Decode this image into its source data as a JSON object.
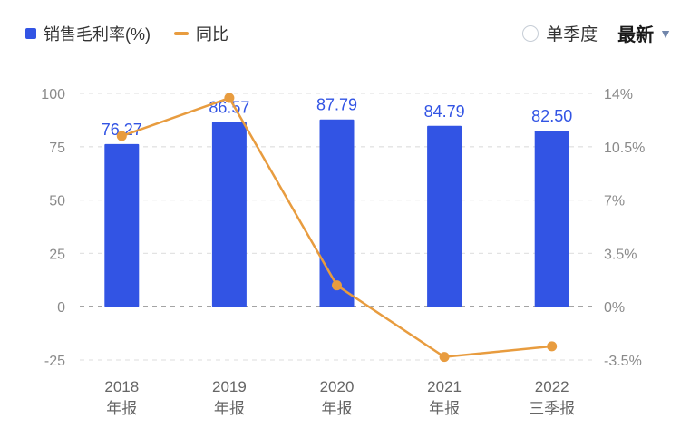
{
  "header": {
    "legend": [
      {
        "label": "销售毛利率(%)",
        "color": "#3254e4",
        "marker": "square"
      },
      {
        "label": "同比",
        "color": "#e89c3f",
        "marker": "line"
      }
    ],
    "controls": {
      "radio_label": "单季度",
      "dropdown_label": "最新",
      "caret_icon": "▼"
    }
  },
  "chart_data": {
    "type": "bar",
    "categories": [
      [
        "2018",
        "年报"
      ],
      [
        "2019",
        "年报"
      ],
      [
        "2020",
        "年报"
      ],
      [
        "2021",
        "年报"
      ],
      [
        "2022",
        "三季报"
      ]
    ],
    "series": [
      {
        "name": "销售毛利率(%)",
        "type": "bar",
        "axis": "left",
        "values": [
          76.27,
          86.57,
          87.79,
          84.79,
          82.5
        ],
        "labels": [
          "76.27",
          "86.57",
          "87.79",
          "84.79",
          "82.50"
        ],
        "color": "#3254e4"
      },
      {
        "name": "同比",
        "type": "line",
        "axis": "right",
        "values": [
          11.2,
          13.7,
          1.4,
          -3.3,
          -2.6
        ],
        "color": "#e89c3f"
      }
    ],
    "left_axis": {
      "ticks": [
        100,
        75,
        50,
        25,
        0,
        -25
      ],
      "range": [
        -25,
        100
      ]
    },
    "right_axis": {
      "tick_labels": [
        "14%",
        "10.5%",
        "7%",
        "3.5%",
        "0%",
        "-3.5%"
      ],
      "tick_values": [
        14,
        10.5,
        7,
        3.5,
        0,
        -3.5
      ],
      "range": [
        -3.5,
        14
      ]
    },
    "grid": "dashed",
    "legend_position": "top-left"
  }
}
